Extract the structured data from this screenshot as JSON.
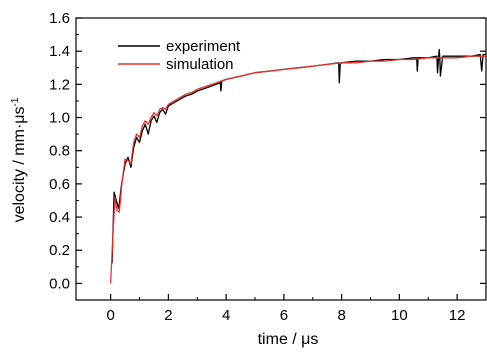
{
  "chart_data": {
    "type": "line",
    "xlabel": "time / μs",
    "ylabel_main": "velocity / mm·μs",
    "ylabel_sup": "-1",
    "xlim": [
      -1.2,
      13
    ],
    "ylim": [
      -0.1,
      1.6
    ],
    "x_ticks": [
      0,
      2,
      4,
      6,
      8,
      10,
      12
    ],
    "x_tick_labels": [
      "0",
      "2",
      "4",
      "6",
      "8",
      "10",
      "12"
    ],
    "y_ticks": [
      0.0,
      0.2,
      0.4,
      0.6,
      0.8,
      1.0,
      1.2,
      1.4,
      1.6
    ],
    "y_tick_labels": [
      "0.0",
      "0.2",
      "0.4",
      "0.6",
      "0.8",
      "1.0",
      "1.2",
      "1.4",
      "1.6"
    ],
    "grid": false,
    "legend_position": "top-left",
    "series": [
      {
        "name": "experiment",
        "color": "#000000",
        "x": [
          0.05,
          0.12,
          0.2,
          0.28,
          0.38,
          0.5,
          0.6,
          0.7,
          0.8,
          0.9,
          1.0,
          1.1,
          1.2,
          1.3,
          1.4,
          1.5,
          1.6,
          1.7,
          1.8,
          1.9,
          2.0,
          2.2,
          2.4,
          2.6,
          2.8,
          3.0,
          3.5,
          3.8,
          3.82,
          3.85,
          4.0,
          4.5,
          5.0,
          5.5,
          6.0,
          6.5,
          7.0,
          7.5,
          7.9,
          7.92,
          7.95,
          8.0,
          8.5,
          9.0,
          9.5,
          10.0,
          10.5,
          10.6,
          10.62,
          10.65,
          11.0,
          11.3,
          11.32,
          11.38,
          11.4,
          11.42,
          11.5,
          12.0,
          12.5,
          12.8,
          12.85,
          12.9,
          13.0
        ],
        "y": [
          0.12,
          0.55,
          0.5,
          0.45,
          0.6,
          0.72,
          0.76,
          0.7,
          0.82,
          0.88,
          0.85,
          0.92,
          0.96,
          0.9,
          0.98,
          1.01,
          0.97,
          1.03,
          1.05,
          1.02,
          1.07,
          1.09,
          1.11,
          1.13,
          1.14,
          1.16,
          1.19,
          1.21,
          1.16,
          1.22,
          1.23,
          1.25,
          1.27,
          1.28,
          1.29,
          1.3,
          1.31,
          1.32,
          1.33,
          1.21,
          1.32,
          1.33,
          1.34,
          1.34,
          1.35,
          1.35,
          1.36,
          1.36,
          1.28,
          1.36,
          1.36,
          1.37,
          1.27,
          1.41,
          1.36,
          1.25,
          1.37,
          1.37,
          1.37,
          1.38,
          1.28,
          1.38,
          1.38
        ]
      },
      {
        "name": "simulation",
        "color": "#e8312a",
        "x": [
          0.0,
          0.08,
          0.15,
          0.22,
          0.3,
          0.4,
          0.5,
          0.6,
          0.7,
          0.8,
          0.9,
          1.0,
          1.1,
          1.2,
          1.3,
          1.4,
          1.5,
          1.6,
          1.7,
          1.8,
          1.9,
          2.0,
          2.2,
          2.4,
          2.6,
          2.8,
          3.0,
          3.5,
          4.0,
          4.5,
          5.0,
          5.5,
          6.0,
          6.5,
          7.0,
          7.5,
          8.0,
          8.5,
          9.0,
          9.5,
          10.0,
          10.5,
          11.0,
          11.5,
          12.0,
          12.5,
          13.0
        ],
        "y": [
          0.0,
          0.3,
          0.52,
          0.44,
          0.43,
          0.62,
          0.75,
          0.74,
          0.72,
          0.85,
          0.9,
          0.88,
          0.95,
          0.98,
          0.96,
          1.0,
          1.03,
          1.01,
          1.05,
          1.06,
          1.05,
          1.08,
          1.1,
          1.12,
          1.14,
          1.15,
          1.17,
          1.2,
          1.23,
          1.25,
          1.27,
          1.28,
          1.29,
          1.3,
          1.31,
          1.32,
          1.33,
          1.33,
          1.34,
          1.34,
          1.35,
          1.35,
          1.36,
          1.36,
          1.36,
          1.37,
          1.37
        ]
      }
    ]
  }
}
